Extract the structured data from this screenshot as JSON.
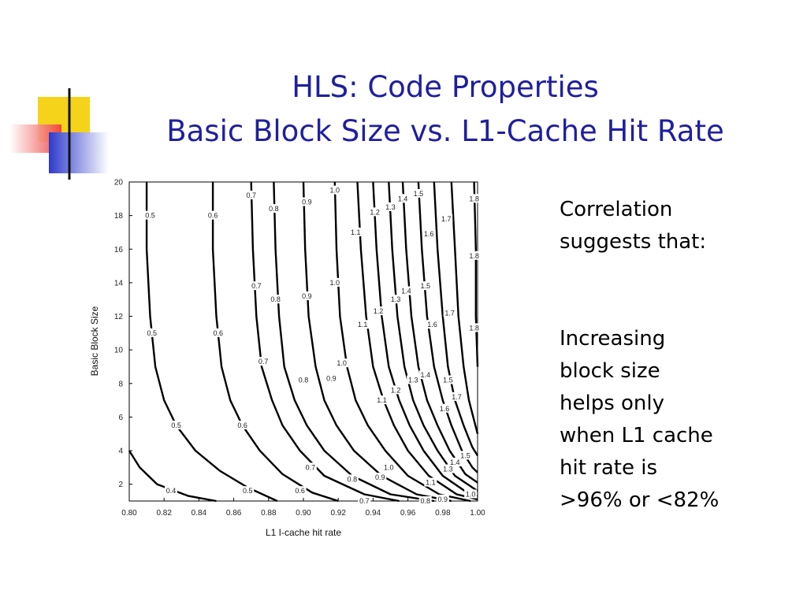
{
  "slide": {
    "title_line1": "HLS: Code Properties",
    "title_line2": "Basic Block Size vs. L1-Cache Hit Rate",
    "side_text1": "Correlation\nsuggests that:",
    "side_text2": "Increasing\nblock size\nhelps only\nwhen L1 cache\nhit rate is\n>96% or <82%",
    "accent_colors": {
      "title": "#1f1f9f",
      "yellow": "#f5d31b",
      "red": "#ee3a3a",
      "blue": "#2d3acb"
    }
  },
  "chart_data": {
    "type": "contour",
    "xlabel": "L1 I-cache hit rate",
    "ylabel": "Basic Block Size",
    "xlim": [
      0.8,
      1.0
    ],
    "ylim": [
      1,
      20
    ],
    "x_ticks": [
      "0.80",
      "0.82",
      "0.84",
      "0.86",
      "0.88",
      "0.90",
      "0.92",
      "0.94",
      "0.96",
      "0.98",
      "1.00"
    ],
    "y_ticks": [
      "2",
      "4",
      "6",
      "8",
      "10",
      "12",
      "14",
      "16",
      "18",
      "20"
    ],
    "contours": [
      {
        "level": "0.4",
        "points": [
          [
            0.8,
            4.0
          ],
          [
            0.806,
            3.0
          ],
          [
            0.816,
            2.0
          ],
          [
            0.834,
            1.3
          ],
          [
            0.85,
            1.0
          ]
        ],
        "labels": [
          [
            0.824,
            1.6
          ]
        ]
      },
      {
        "level": "0.5",
        "points": [
          [
            0.81,
            20.0
          ],
          [
            0.81,
            16.0
          ],
          [
            0.812,
            12.0
          ],
          [
            0.815,
            9.0
          ],
          [
            0.82,
            7.0
          ],
          [
            0.827,
            5.5
          ],
          [
            0.838,
            4.0
          ],
          [
            0.852,
            2.8
          ],
          [
            0.868,
            1.8
          ],
          [
            0.885,
            1.0
          ]
        ],
        "labels": [
          [
            0.812,
            18.0
          ],
          [
            0.813,
            11.0
          ],
          [
            0.827,
            5.5
          ],
          [
            0.868,
            1.6
          ]
        ]
      },
      {
        "level": "0.6",
        "points": [
          [
            0.848,
            20.0
          ],
          [
            0.848,
            16.0
          ],
          [
            0.85,
            12.0
          ],
          [
            0.853,
            9.0
          ],
          [
            0.858,
            7.0
          ],
          [
            0.865,
            5.5
          ],
          [
            0.875,
            4.0
          ],
          [
            0.888,
            2.6
          ],
          [
            0.905,
            1.5
          ],
          [
            0.92,
            1.0
          ]
        ],
        "labels": [
          [
            0.848,
            18.0
          ],
          [
            0.851,
            11.0
          ],
          [
            0.865,
            5.5
          ],
          [
            0.898,
            1.6
          ]
        ]
      },
      {
        "level": "0.7",
        "points": [
          [
            0.87,
            20.0
          ],
          [
            0.871,
            16.0
          ],
          [
            0.873,
            12.0
          ],
          [
            0.876,
            9.0
          ],
          [
            0.882,
            7.0
          ],
          [
            0.888,
            5.5
          ],
          [
            0.898,
            4.0
          ],
          [
            0.912,
            2.5
          ],
          [
            0.935,
            1.4
          ],
          [
            0.955,
            1.0
          ]
        ],
        "labels": [
          [
            0.87,
            19.2
          ],
          [
            0.873,
            13.8
          ],
          [
            0.877,
            9.3
          ],
          [
            0.904,
            3.0
          ],
          [
            0.935,
            1.0
          ]
        ]
      },
      {
        "level": "0.8",
        "points": [
          [
            0.883,
            20.0
          ],
          [
            0.884,
            16.0
          ],
          [
            0.886,
            12.0
          ],
          [
            0.889,
            9.0
          ],
          [
            0.895,
            7.0
          ],
          [
            0.902,
            5.5
          ],
          [
            0.912,
            4.0
          ],
          [
            0.928,
            2.5
          ],
          [
            0.95,
            1.4
          ],
          [
            0.975,
            1.0
          ]
        ],
        "labels": [
          [
            0.883,
            18.4
          ],
          [
            0.884,
            13.0
          ],
          [
            0.9,
            8.2
          ],
          [
            0.928,
            2.3
          ],
          [
            0.97,
            1.0
          ]
        ]
      },
      {
        "level": "0.9",
        "points": [
          [
            0.9,
            20.0
          ],
          [
            0.901,
            16.0
          ],
          [
            0.903,
            12.0
          ],
          [
            0.907,
            9.0
          ],
          [
            0.912,
            7.0
          ],
          [
            0.919,
            5.5
          ],
          [
            0.929,
            4.0
          ],
          [
            0.945,
            2.5
          ],
          [
            0.965,
            1.4
          ],
          [
            0.985,
            1.0
          ]
        ],
        "labels": [
          [
            0.902,
            18.8
          ],
          [
            0.902,
            13.2
          ],
          [
            0.916,
            8.3
          ],
          [
            0.944,
            2.4
          ],
          [
            0.98,
            1.1
          ]
        ]
      },
      {
        "level": "1.0",
        "points": [
          [
            0.918,
            20.0
          ],
          [
            0.919,
            16.0
          ],
          [
            0.921,
            12.0
          ],
          [
            0.925,
            9.0
          ],
          [
            0.93,
            7.0
          ],
          [
            0.937,
            5.5
          ],
          [
            0.947,
            4.0
          ],
          [
            0.96,
            2.5
          ],
          [
            0.978,
            1.4
          ],
          [
            0.996,
            1.0
          ]
        ],
        "labels": [
          [
            0.918,
            19.5
          ],
          [
            0.918,
            14.0
          ],
          [
            0.922,
            9.2
          ],
          [
            0.949,
            3.0
          ],
          [
            0.996,
            1.4
          ]
        ]
      },
      {
        "level": "1.1",
        "points": [
          [
            0.931,
            20.0
          ],
          [
            0.933,
            16.0
          ],
          [
            0.936,
            12.0
          ],
          [
            0.94,
            9.0
          ],
          [
            0.946,
            7.0
          ],
          [
            0.952,
            5.5
          ],
          [
            0.96,
            4.0
          ],
          [
            0.972,
            2.5
          ],
          [
            0.988,
            1.4
          ],
          [
            1.0,
            1.1
          ]
        ],
        "labels": [
          [
            0.93,
            17.0
          ],
          [
            0.934,
            11.5
          ],
          [
            0.945,
            7.0
          ],
          [
            0.973,
            2.1
          ]
        ]
      },
      {
        "level": "1.2",
        "points": [
          [
            0.94,
            20.0
          ],
          [
            0.942,
            16.0
          ],
          [
            0.945,
            12.0
          ],
          [
            0.949,
            9.0
          ],
          [
            0.955,
            7.0
          ],
          [
            0.961,
            5.5
          ],
          [
            0.969,
            4.0
          ],
          [
            0.98,
            2.5
          ],
          [
            0.994,
            1.5
          ],
          [
            1.0,
            1.3
          ]
        ],
        "labels": [
          [
            0.941,
            18.2
          ],
          [
            0.943,
            12.3
          ],
          [
            0.953,
            7.6
          ]
        ]
      },
      {
        "level": "1.3",
        "points": [
          [
            0.949,
            20.0
          ],
          [
            0.951,
            16.0
          ],
          [
            0.954,
            12.0
          ],
          [
            0.958,
            9.0
          ],
          [
            0.963,
            7.0
          ],
          [
            0.969,
            5.5
          ],
          [
            0.977,
            4.0
          ],
          [
            0.987,
            2.5
          ],
          [
            1.0,
            1.6
          ]
        ],
        "labels": [
          [
            0.95,
            18.5
          ],
          [
            0.953,
            13.0
          ],
          [
            0.963,
            8.2
          ],
          [
            0.983,
            2.9
          ]
        ]
      },
      {
        "level": "1.4",
        "points": [
          [
            0.957,
            20.0
          ],
          [
            0.959,
            16.0
          ],
          [
            0.962,
            12.0
          ],
          [
            0.966,
            9.0
          ],
          [
            0.971,
            7.0
          ],
          [
            0.977,
            5.5
          ],
          [
            0.984,
            4.0
          ],
          [
            0.993,
            2.6
          ],
          [
            1.0,
            2.1
          ]
        ],
        "labels": [
          [
            0.957,
            19.0
          ],
          [
            0.959,
            13.5
          ],
          [
            0.97,
            8.5
          ],
          [
            0.987,
            3.3
          ]
        ]
      },
      {
        "level": "1.5",
        "points": [
          [
            0.966,
            20.0
          ],
          [
            0.968,
            16.0
          ],
          [
            0.971,
            12.0
          ],
          [
            0.975,
            9.0
          ],
          [
            0.98,
            7.0
          ],
          [
            0.985,
            5.5
          ],
          [
            0.991,
            4.0
          ],
          [
            0.997,
            3.0
          ],
          [
            1.0,
            2.7
          ]
        ],
        "labels": [
          [
            0.966,
            19.3
          ],
          [
            0.97,
            13.8
          ],
          [
            0.983,
            8.2
          ],
          [
            0.993,
            3.7
          ]
        ]
      },
      {
        "level": "1.6",
        "points": [
          [
            0.975,
            20.0
          ],
          [
            0.977,
            16.0
          ],
          [
            0.98,
            12.0
          ],
          [
            0.983,
            9.0
          ],
          [
            0.987,
            7.0
          ],
          [
            0.992,
            5.5
          ],
          [
            0.997,
            4.2
          ],
          [
            1.0,
            3.7
          ]
        ],
        "labels": [
          [
            0.972,
            16.9
          ],
          [
            0.974,
            11.5
          ],
          [
            0.981,
            6.5
          ]
        ]
      },
      {
        "level": "1.7",
        "points": [
          [
            0.985,
            20.0
          ],
          [
            0.987,
            16.0
          ],
          [
            0.989,
            12.0
          ],
          [
            0.992,
            9.0
          ],
          [
            0.995,
            7.0
          ],
          [
            0.998,
            5.8
          ],
          [
            1.0,
            5.0
          ]
        ],
        "labels": [
          [
            0.982,
            17.8
          ],
          [
            0.984,
            12.2
          ],
          [
            0.988,
            7.2
          ]
        ]
      },
      {
        "level": "1.8",
        "points": [
          [
            0.998,
            20.0
          ],
          [
            0.999,
            16.0
          ],
          [
            0.999,
            12.0
          ],
          [
            1.0,
            9.0
          ]
        ],
        "labels": [
          [
            0.998,
            19.0
          ],
          [
            0.998,
            15.6
          ],
          [
            0.998,
            11.3
          ]
        ]
      }
    ]
  }
}
